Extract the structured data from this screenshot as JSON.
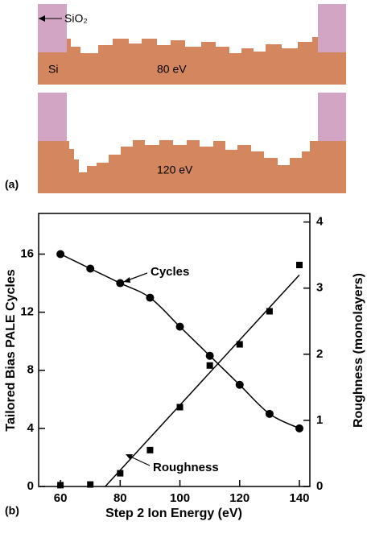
{
  "panel_a": {
    "label": "(a)",
    "annotation": "SiO₂",
    "material": "Si",
    "images": [
      {
        "label": "80 eV"
      },
      {
        "label": "120 eV"
      }
    ]
  },
  "chart_data": {
    "type": "line",
    "panel_label": "(b)",
    "x_label": "Step 2 Ion Energy (eV)",
    "y_label": "Tailored Bias PALE Cycles",
    "y2_label": "Roughness (monolayers)",
    "x": [
      60,
      70,
      80,
      90,
      100,
      110,
      120,
      130,
      140
    ],
    "xlim": [
      52.7,
      143.5
    ],
    "xticks": [
      60,
      80,
      100,
      120,
      140
    ],
    "ylim": [
      0,
      18.8
    ],
    "yticks": [
      0,
      4,
      8,
      12,
      16
    ],
    "y2lim": [
      0,
      4.13
    ],
    "y2ticks": [
      0,
      1,
      2,
      3,
      4
    ],
    "series": [
      {
        "name": "Cycles",
        "color": "#000000",
        "marker": "circle",
        "values": [
          16,
          15,
          14,
          13,
          11,
          9,
          7,
          5,
          4
        ]
      },
      {
        "name": "Roughness",
        "color": "#000000",
        "marker": "square",
        "axis": "y2",
        "values": [
          0.02,
          0.03,
          0.2,
          0.55,
          1.2,
          1.83,
          2.15,
          2.65,
          3.35
        ]
      }
    ],
    "fit": {
      "x": [
        75,
        140
      ],
      "values": [
        0,
        3.2
      ],
      "axis": "y2"
    }
  }
}
